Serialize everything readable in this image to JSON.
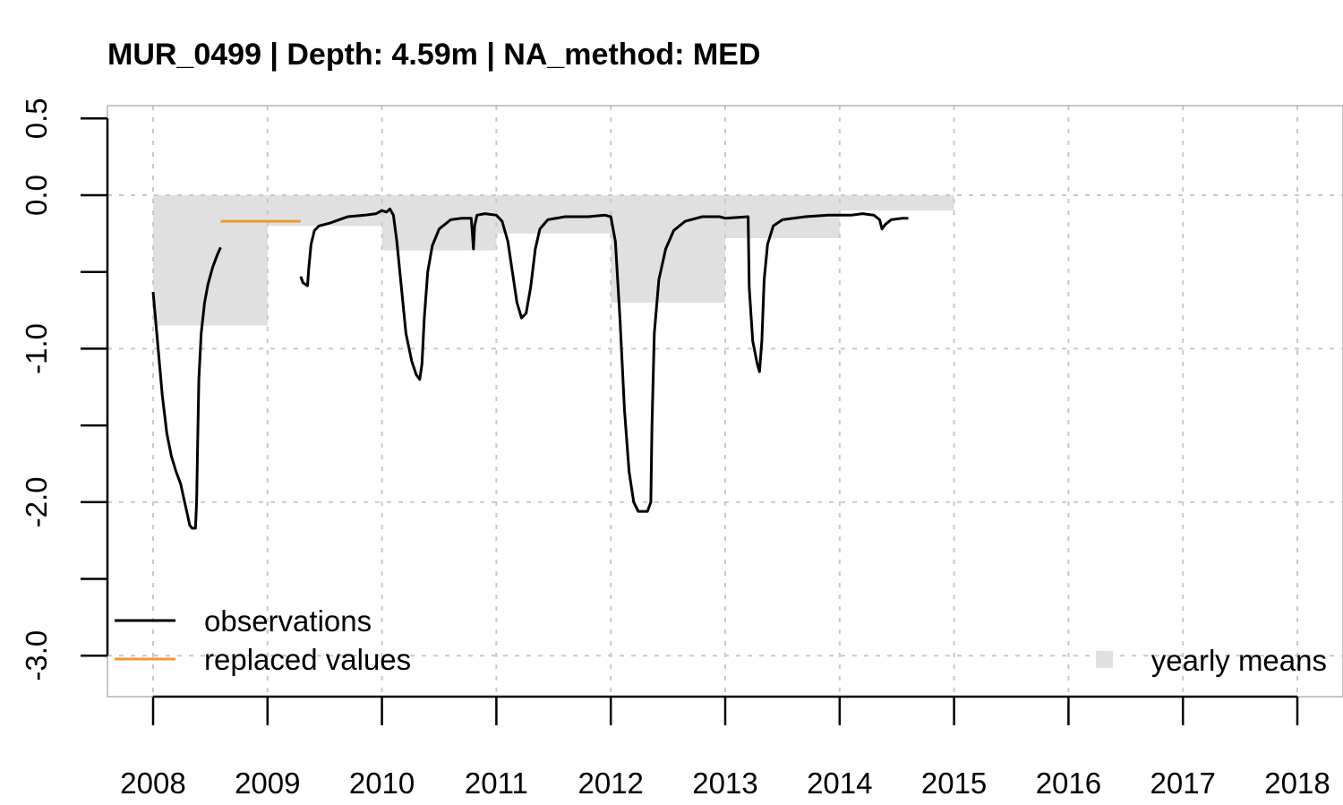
{
  "chart_data": {
    "type": "line",
    "title": "MUR_0499 | Depth: 4.59m | NA_method: MED",
    "xlabel": "",
    "ylabel": "",
    "xlim": [
      2007.6,
      2018.4
    ],
    "ylim": [
      -3.25,
      0.5
    ],
    "x_ticks": [
      2008,
      2009,
      2010,
      2011,
      2012,
      2013,
      2014,
      2015,
      2016,
      2017,
      2018
    ],
    "x_tick_labels": [
      "2008",
      "2009",
      "2010",
      "2011",
      "2012",
      "2013",
      "2014",
      "2015",
      "2016",
      "2017",
      "2018"
    ],
    "y_ticks": [
      0.5,
      0.0,
      -0.5,
      -1.0,
      -1.5,
      -2.0,
      -2.5,
      -3.0
    ],
    "y_tick_labels": [
      "0.5",
      "0.0",
      "",
      "-1.0",
      "",
      "-2.0",
      "",
      "-3.0"
    ],
    "grid": true,
    "legend": {
      "position": "bottom-left",
      "entries": [
        {
          "label": "observations",
          "color": "#000000"
        },
        {
          "label": "replaced values",
          "color": "#f29a2e"
        }
      ],
      "extra": {
        "label": "yearly means",
        "color": "#e0e0e0",
        "position": "bottom-right"
      }
    },
    "yearly_means": [
      {
        "year": 2008,
        "value": -0.85
      },
      {
        "year": 2009,
        "value": -0.2
      },
      {
        "year": 2010,
        "value": -0.36
      },
      {
        "year": 2011,
        "value": -0.25
      },
      {
        "year": 2012,
        "value": -0.7
      },
      {
        "year": 2013,
        "value": -0.28
      },
      {
        "year": 2014,
        "value": -0.1
      }
    ],
    "series": [
      {
        "name": "observations",
        "color": "#000000",
        "segments": [
          [
            [
              2008.0,
              -0.63
            ],
            [
              2008.02,
              -0.8
            ],
            [
              2008.05,
              -1.05
            ],
            [
              2008.08,
              -1.3
            ],
            [
              2008.12,
              -1.55
            ],
            [
              2008.16,
              -1.7
            ],
            [
              2008.2,
              -1.8
            ],
            [
              2008.24,
              -1.88
            ],
            [
              2008.27,
              -1.98
            ],
            [
              2008.3,
              -2.08
            ],
            [
              2008.32,
              -2.15
            ],
            [
              2008.34,
              -2.17
            ],
            [
              2008.37,
              -2.17
            ],
            [
              2008.38,
              -2.0
            ],
            [
              2008.39,
              -1.6
            ],
            [
              2008.4,
              -1.2
            ],
            [
              2008.42,
              -0.9
            ],
            [
              2008.45,
              -0.7
            ],
            [
              2008.48,
              -0.58
            ],
            [
              2008.52,
              -0.47
            ],
            [
              2008.56,
              -0.39
            ],
            [
              2008.59,
              -0.34
            ]
          ],
          [
            [
              2009.29,
              -0.53
            ],
            [
              2009.31,
              -0.57
            ],
            [
              2009.35,
              -0.59
            ],
            [
              2009.36,
              -0.48
            ],
            [
              2009.38,
              -0.32
            ],
            [
              2009.41,
              -0.23
            ],
            [
              2009.45,
              -0.2
            ],
            [
              2009.55,
              -0.18
            ],
            [
              2009.7,
              -0.14
            ],
            [
              2009.85,
              -0.13
            ],
            [
              2009.95,
              -0.12
            ],
            [
              2010.0,
              -0.1
            ],
            [
              2010.04,
              -0.11
            ],
            [
              2010.07,
              -0.09
            ],
            [
              2010.1,
              -0.13
            ],
            [
              2010.13,
              -0.3
            ],
            [
              2010.17,
              -0.6
            ],
            [
              2010.21,
              -0.9
            ],
            [
              2010.26,
              -1.08
            ],
            [
              2010.3,
              -1.17
            ],
            [
              2010.33,
              -1.2
            ],
            [
              2010.35,
              -1.1
            ],
            [
              2010.37,
              -0.8
            ],
            [
              2010.4,
              -0.5
            ],
            [
              2010.44,
              -0.33
            ],
            [
              2010.5,
              -0.22
            ],
            [
              2010.6,
              -0.16
            ],
            [
              2010.7,
              -0.15
            ],
            [
              2010.78,
              -0.15
            ],
            [
              2010.79,
              -0.25
            ],
            [
              2010.8,
              -0.35
            ],
            [
              2010.81,
              -0.2
            ],
            [
              2010.83,
              -0.13
            ],
            [
              2010.9,
              -0.12
            ],
            [
              2011.0,
              -0.13
            ],
            [
              2011.05,
              -0.17
            ],
            [
              2011.1,
              -0.3
            ],
            [
              2011.14,
              -0.5
            ],
            [
              2011.18,
              -0.7
            ],
            [
              2011.22,
              -0.8
            ],
            [
              2011.26,
              -0.77
            ],
            [
              2011.3,
              -0.6
            ],
            [
              2011.34,
              -0.35
            ],
            [
              2011.38,
              -0.22
            ],
            [
              2011.45,
              -0.16
            ],
            [
              2011.6,
              -0.14
            ],
            [
              2011.8,
              -0.14
            ],
            [
              2011.95,
              -0.13
            ],
            [
              2012.0,
              -0.14
            ],
            [
              2012.04,
              -0.3
            ],
            [
              2012.08,
              -0.8
            ],
            [
              2012.12,
              -1.4
            ],
            [
              2012.16,
              -1.8
            ],
            [
              2012.2,
              -2.0
            ],
            [
              2012.24,
              -2.06
            ],
            [
              2012.32,
              -2.06
            ],
            [
              2012.35,
              -2.0
            ],
            [
              2012.36,
              -1.5
            ],
            [
              2012.38,
              -0.9
            ],
            [
              2012.42,
              -0.55
            ],
            [
              2012.48,
              -0.35
            ],
            [
              2012.55,
              -0.23
            ],
            [
              2012.65,
              -0.17
            ],
            [
              2012.8,
              -0.14
            ],
            [
              2012.95,
              -0.14
            ],
            [
              2013.0,
              -0.15
            ],
            [
              2013.2,
              -0.14
            ],
            [
              2013.21,
              -0.6
            ],
            [
              2013.24,
              -0.95
            ],
            [
              2013.28,
              -1.1
            ],
            [
              2013.3,
              -1.15
            ],
            [
              2013.32,
              -0.95
            ],
            [
              2013.34,
              -0.55
            ],
            [
              2013.37,
              -0.32
            ],
            [
              2013.42,
              -0.2
            ],
            [
              2013.5,
              -0.16
            ],
            [
              2013.7,
              -0.14
            ],
            [
              2013.9,
              -0.13
            ],
            [
              2014.1,
              -0.13
            ],
            [
              2014.2,
              -0.12
            ],
            [
              2014.3,
              -0.13
            ],
            [
              2014.35,
              -0.16
            ],
            [
              2014.37,
              -0.22
            ],
            [
              2014.4,
              -0.19
            ],
            [
              2014.45,
              -0.16
            ],
            [
              2014.55,
              -0.15
            ],
            [
              2014.6,
              -0.15
            ]
          ]
        ]
      },
      {
        "name": "replaced values",
        "color": "#f29a2e",
        "segments": [
          [
            [
              2008.59,
              -0.17
            ],
            [
              2009.29,
              -0.17
            ]
          ]
        ]
      }
    ]
  }
}
